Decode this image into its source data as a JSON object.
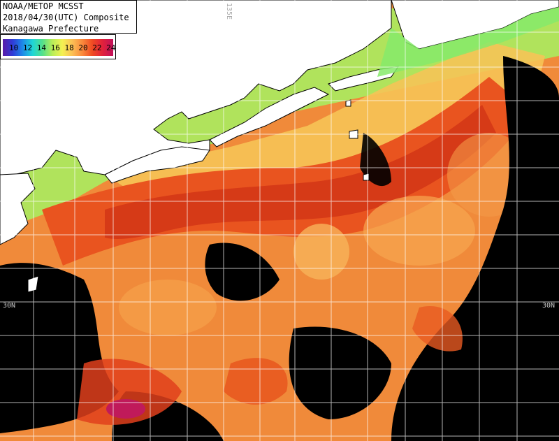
{
  "header": {
    "line1": "NOAA/METOP MCSST",
    "line2": "2018/04/30(UTC) Composite",
    "line3": "Kanagawa Prefecture"
  },
  "legend": {
    "labels": "10 12 14 16 18 20 22 24"
  },
  "grid": {
    "lat_left": "30N",
    "lat_right": "30N",
    "lon_top": "135E"
  },
  "colors": {
    "land": "#ffffff",
    "cloud": "#000000",
    "cold_coastal": "#8ff06a",
    "warm_core": "#e84a1d",
    "hot_core": "#d52a18",
    "pale_orange": "#f7a14c",
    "grid": "#ffffff"
  }
}
